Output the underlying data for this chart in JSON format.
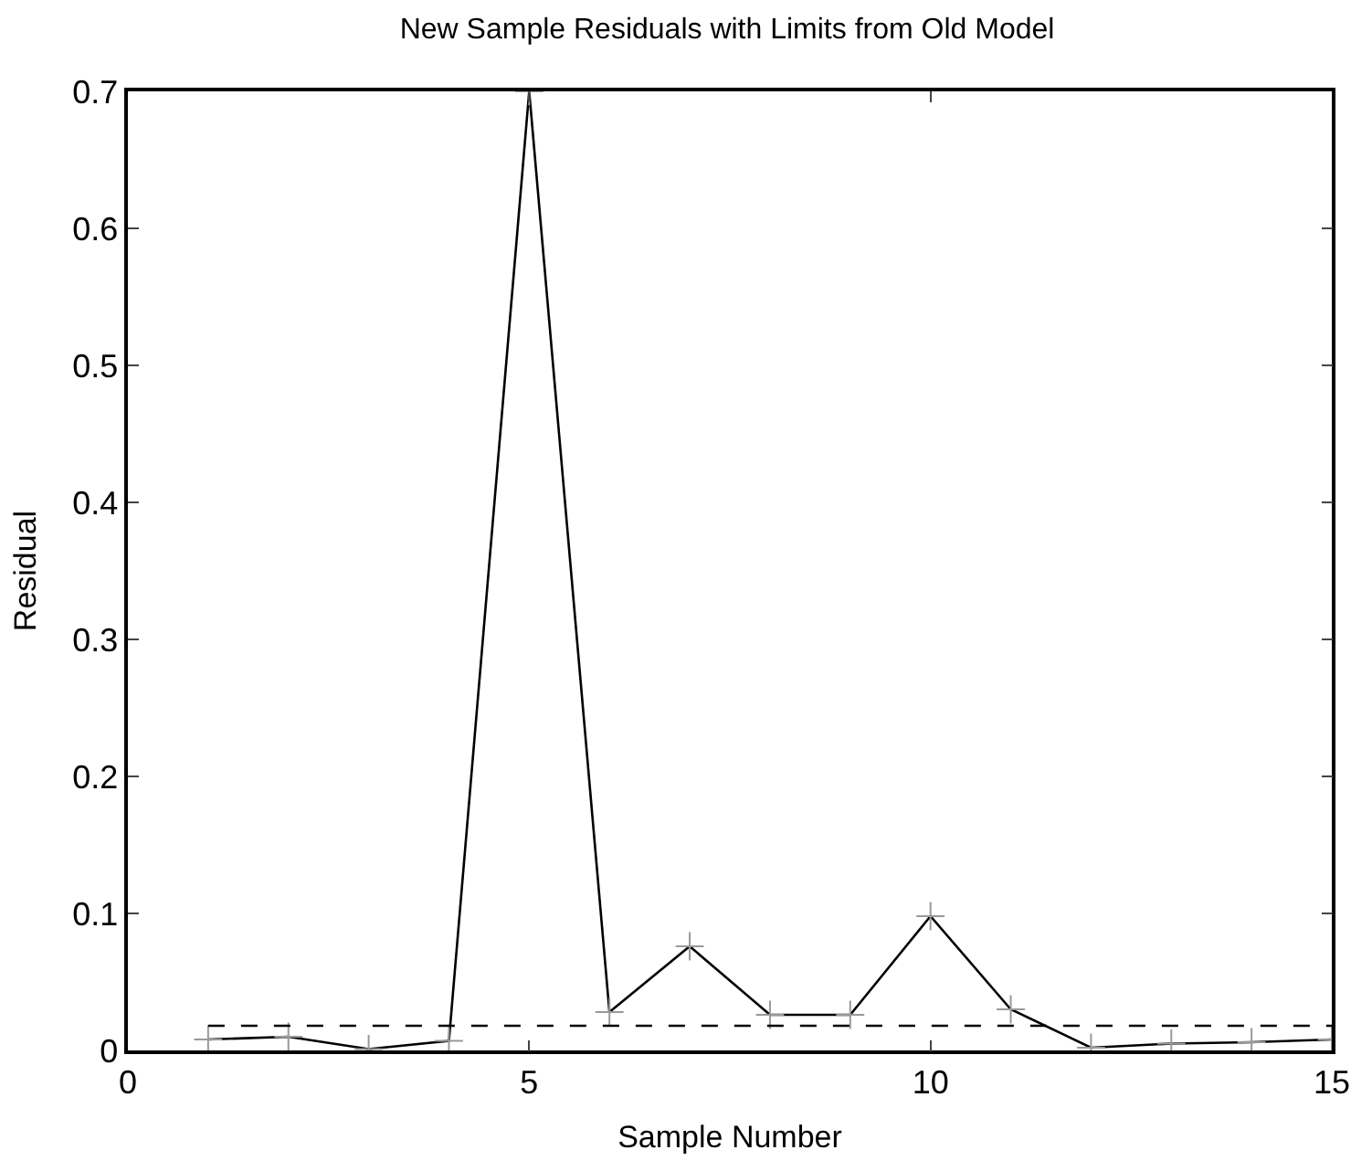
{
  "chart_data": {
    "type": "line",
    "title": "New Sample Residuals with Limits from Old Model",
    "xlabel": "Sample Number",
    "ylabel": "Residual",
    "xlim": [
      0,
      15
    ],
    "xticks": [
      0,
      5,
      10,
      15
    ],
    "ylim": [
      0,
      0.7
    ],
    "yticks": [
      0,
      0.1,
      0.2,
      0.3,
      0.4,
      0.5,
      0.6,
      0.7
    ],
    "series": [
      {
        "x": [
          1,
          2,
          3,
          4,
          5,
          6,
          7,
          8,
          9,
          10,
          11,
          12,
          13,
          14,
          15
        ],
        "color": "#000000",
        "marker": "cross",
        "line_style": "solid",
        "values": [
          0.008,
          0.01,
          0.001,
          0.007,
          0.7,
          0.028,
          0.076,
          0.026,
          0.026,
          0.098,
          0.03,
          0.002,
          0.005,
          0.006,
          0.008
        ]
      },
      {
        "x": [
          1,
          15
        ],
        "color": "#000000",
        "marker": "none",
        "line_style": "dashed",
        "values": [
          0.018,
          0.018
        ]
      }
    ]
  }
}
